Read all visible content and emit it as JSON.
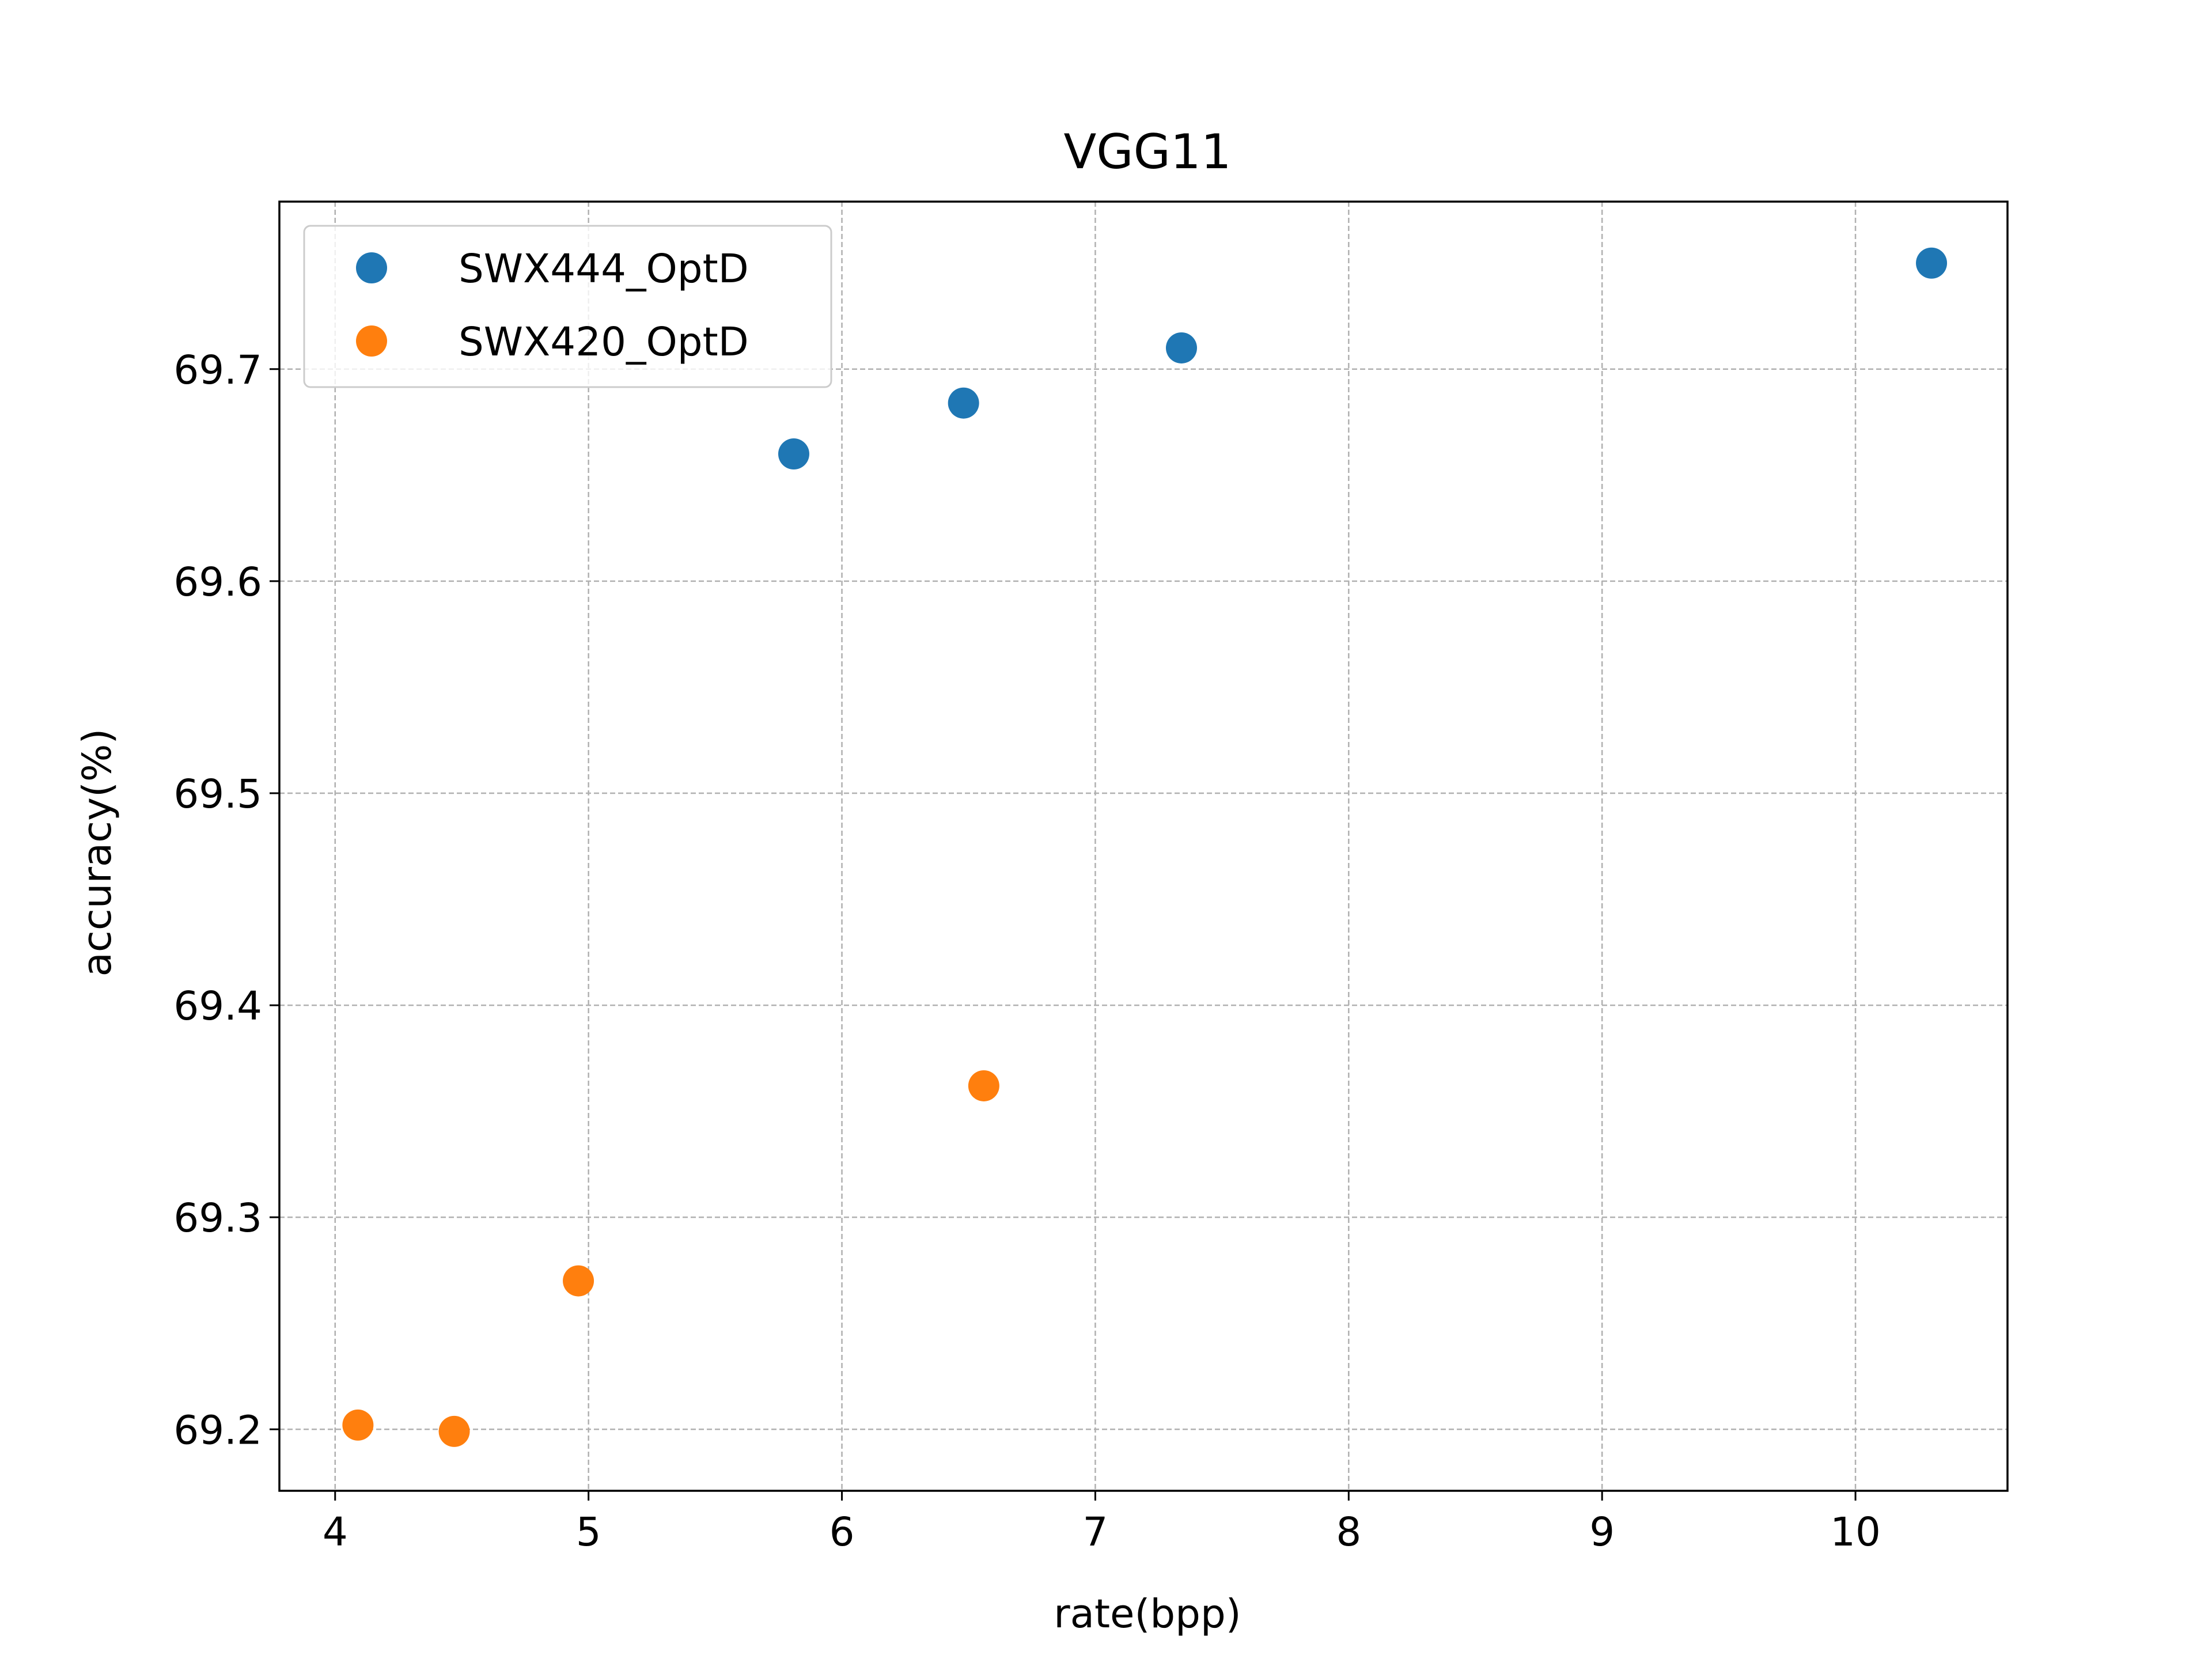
{
  "chart_data": {
    "type": "scatter",
    "title": "VGG11",
    "xlabel": "rate(bpp)",
    "ylabel": "accuracy(%)",
    "xlim": [
      3.78,
      10.6
    ],
    "ylim": [
      69.171,
      69.779
    ],
    "xticks": [
      4,
      5,
      6,
      7,
      8,
      9,
      10
    ],
    "yticks": [
      69.2,
      69.3,
      69.4,
      69.5,
      69.6,
      69.7
    ],
    "xtick_labels": [
      "4",
      "5",
      "6",
      "7",
      "8",
      "9",
      "10"
    ],
    "ytick_labels": [
      "69.2",
      "69.3",
      "69.4",
      "69.5",
      "69.6",
      "69.7"
    ],
    "grid": true,
    "legend_position": "upper left",
    "series": [
      {
        "name": "SWX444_OptD",
        "color": "#1f77b4",
        "points": [
          {
            "x": 5.81,
            "y": 69.66
          },
          {
            "x": 6.48,
            "y": 69.684
          },
          {
            "x": 7.34,
            "y": 69.71
          },
          {
            "x": 10.3,
            "y": 69.75
          }
        ]
      },
      {
        "name": "SWX420_OptD",
        "color": "#ff7f0e",
        "points": [
          {
            "x": 4.09,
            "y": 69.202
          },
          {
            "x": 4.47,
            "y": 69.199
          },
          {
            "x": 4.96,
            "y": 69.27
          },
          {
            "x": 6.56,
            "y": 69.362
          }
        ]
      }
    ]
  }
}
